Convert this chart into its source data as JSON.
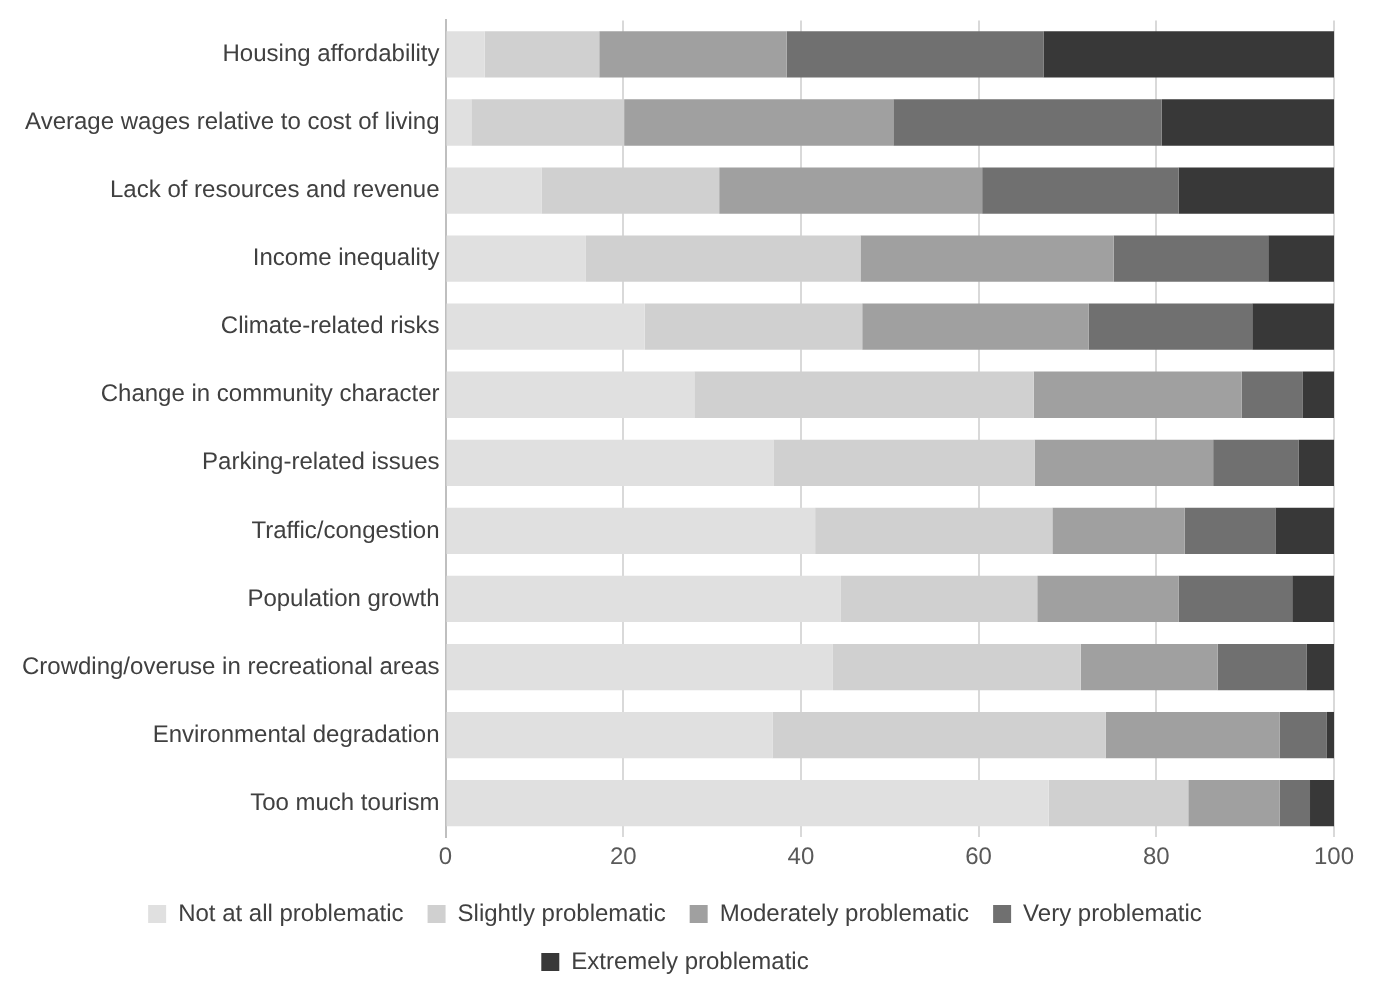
{
  "chart_data": {
    "type": "bar",
    "orientation": "horizontal",
    "stacked": true,
    "categories": [
      "Housing affordability",
      "Average wages relative to cost of living",
      "Lack of resources and revenue",
      "Income inequality",
      "Climate-related risks",
      "Change in community character",
      "Parking-related issues",
      "Traffic/congestion",
      "Population growth",
      "Crowding/overuse in recreational areas",
      "Environmental degradation",
      "Too much tourism"
    ],
    "series": [
      {
        "name": "Not at all problematic",
        "color": "#e0e0e0",
        "values": [
          4.4,
          2.9,
          10.8,
          15.8,
          22.4,
          28,
          36.9,
          41.6,
          44.5,
          43.6,
          36.8,
          67.9
        ]
      },
      {
        "name": "Slightly problematic",
        "color": "#d0d0d0",
        "values": [
          12.9,
          17.2,
          20,
          30.9,
          24.5,
          38.2,
          29.4,
          26.7,
          22.1,
          27.9,
          37.5,
          15.7
        ]
      },
      {
        "name": "Moderately problematic",
        "color": "#a0a0a0",
        "values": [
          21.1,
          30.3,
          29.6,
          28.5,
          25.5,
          23.4,
          20.1,
          14.9,
          15.9,
          15.4,
          19.6,
          10.3
        ]
      },
      {
        "name": "Very problematic",
        "color": "#707070",
        "values": [
          28.9,
          30.2,
          22.1,
          17.4,
          18.4,
          6.9,
          9.6,
          10.2,
          12.8,
          10,
          5.3,
          3.4
        ]
      },
      {
        "name": "Extremely problematic",
        "color": "#383838",
        "values": [
          32.7,
          19.4,
          17.5,
          7.4,
          9.2,
          3.5,
          4,
          6.6,
          4.7,
          3.1,
          0.8,
          2.7
        ]
      }
    ],
    "xlim": [
      0,
      100
    ],
    "xticks": [
      0,
      20,
      40,
      60,
      80,
      100
    ],
    "grid": "x",
    "legend": "bottom"
  }
}
